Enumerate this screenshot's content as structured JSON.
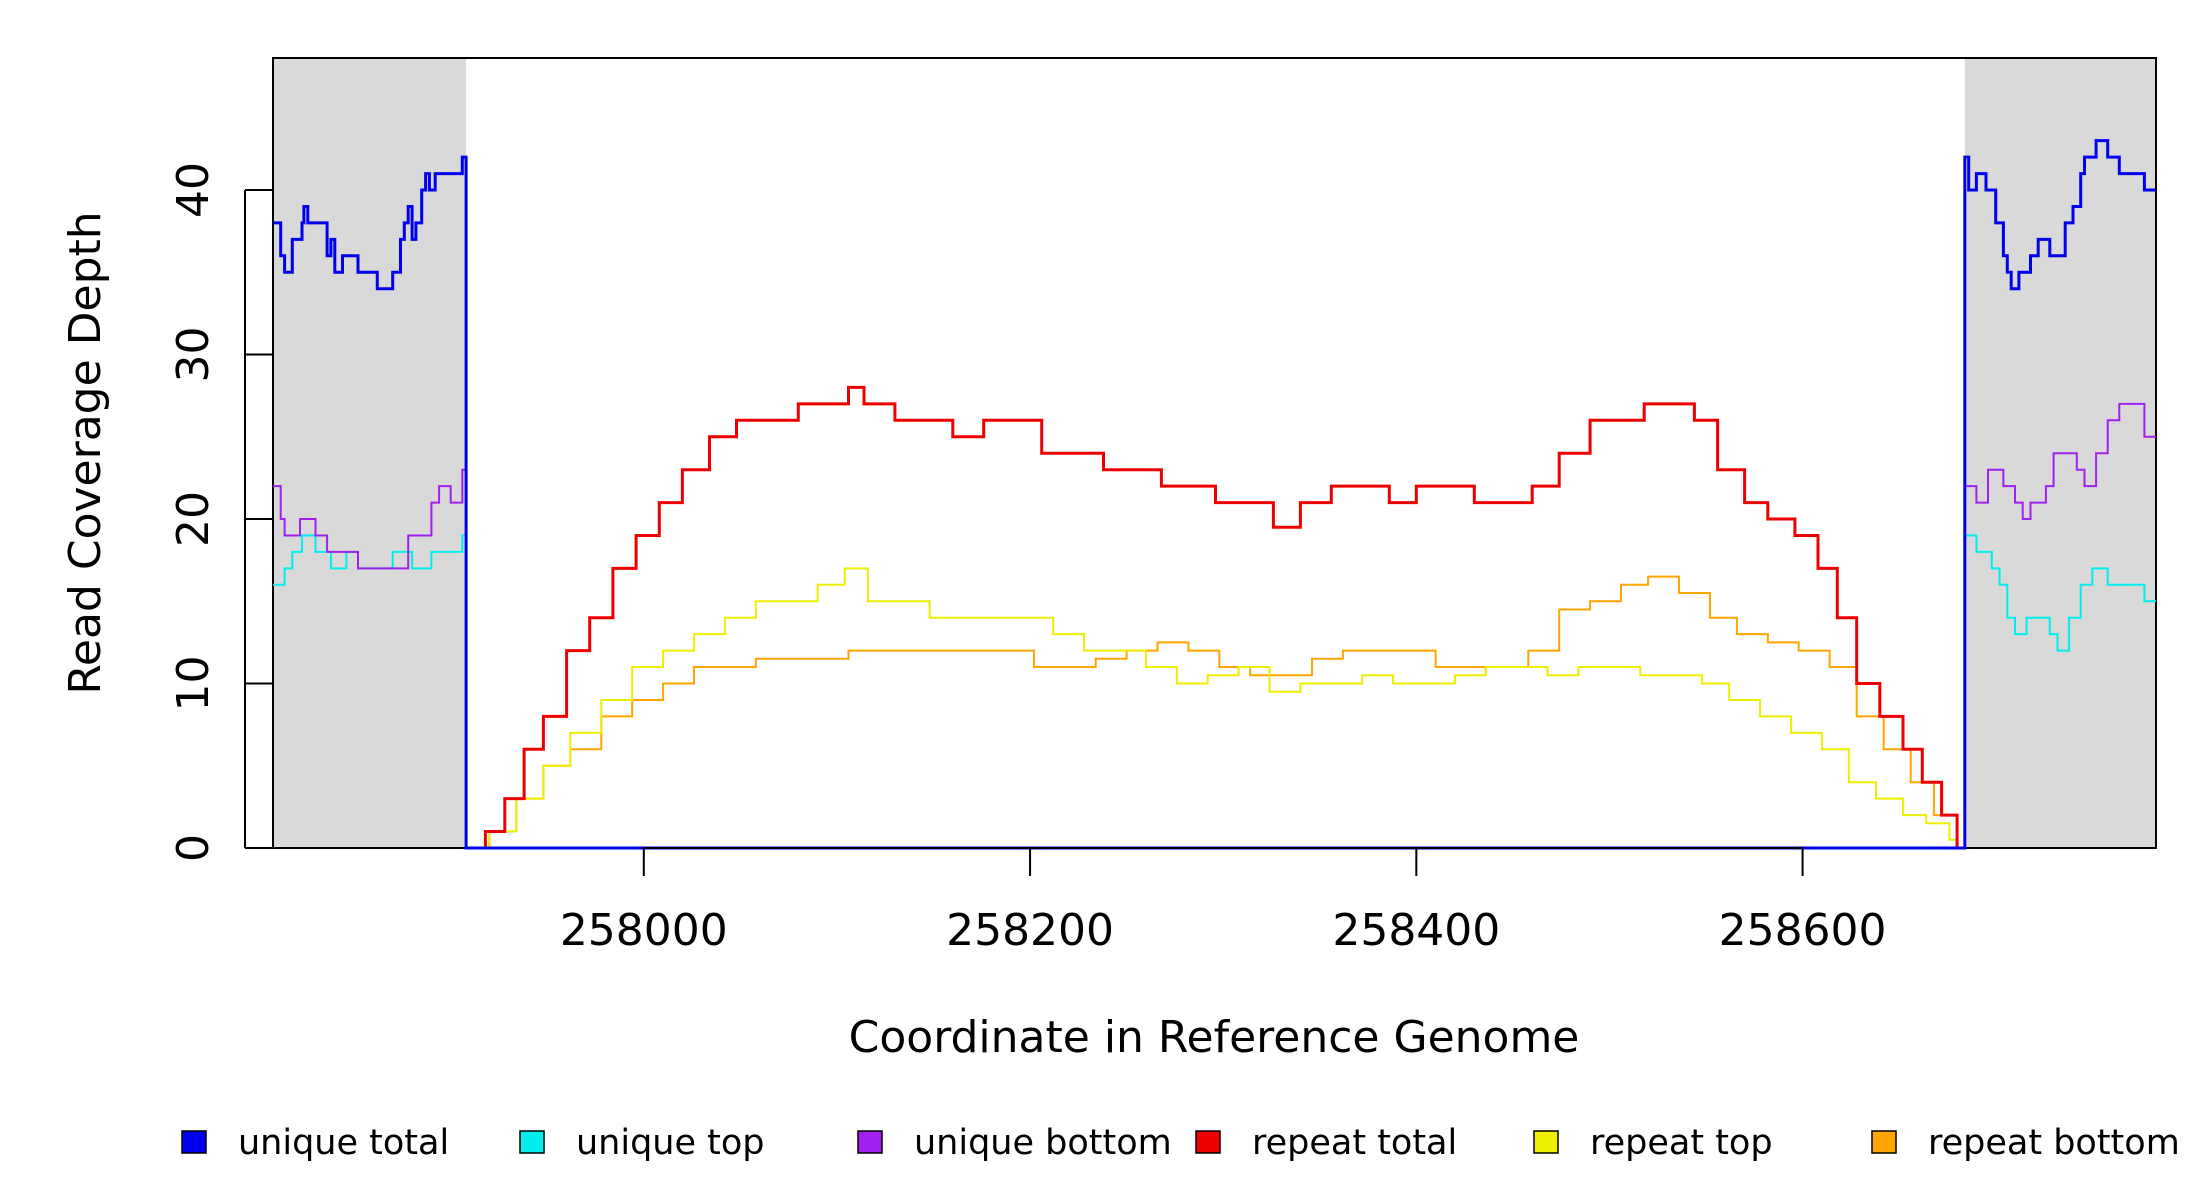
{
  "chart_data": {
    "type": "line",
    "title": "",
    "xlabel": "Coordinate in Reference Genome",
    "ylabel": "Read Coverage Depth",
    "xlim": [
      257808,
      258783
    ],
    "ylim": [
      0,
      48
    ],
    "x_ticks": [
      258000,
      258200,
      258400,
      258600
    ],
    "y_ticks": [
      0,
      10,
      20,
      30,
      40
    ],
    "grid": false,
    "legend_position": "bottom",
    "shaded_regions": [
      {
        "x0": 257808,
        "x1": 257908,
        "color": "#d9d9d9"
      },
      {
        "x0": 258684,
        "x1": 258783,
        "color": "#d9d9d9"
      }
    ],
    "series": [
      {
        "name": "unique total",
        "color": "#0000ee",
        "points": [
          [
            257808,
            38
          ],
          [
            257812,
            36
          ],
          [
            257814,
            35
          ],
          [
            257818,
            37
          ],
          [
            257823,
            38
          ],
          [
            257824,
            39
          ],
          [
            257826,
            38
          ],
          [
            257836,
            36
          ],
          [
            257838,
            37
          ],
          [
            257840,
            35
          ],
          [
            257844,
            36
          ],
          [
            257852,
            35
          ],
          [
            257862,
            34
          ],
          [
            257870,
            35
          ],
          [
            257874,
            37
          ],
          [
            257876,
            38
          ],
          [
            257878,
            39
          ],
          [
            257880,
            37
          ],
          [
            257882,
            38
          ],
          [
            257885,
            40
          ],
          [
            257887,
            41
          ],
          [
            257889,
            40
          ],
          [
            257892,
            41
          ],
          [
            257906,
            42
          ],
          [
            257908,
            42
          ],
          [
            257908,
            0
          ],
          [
            258684,
            0
          ],
          [
            258684,
            42
          ],
          [
            258686,
            40
          ],
          [
            258690,
            41
          ],
          [
            258695,
            40
          ],
          [
            258700,
            38
          ],
          [
            258704,
            36
          ],
          [
            258706,
            35
          ],
          [
            258708,
            34
          ],
          [
            258712,
            35
          ],
          [
            258718,
            36
          ],
          [
            258722,
            37
          ],
          [
            258728,
            36
          ],
          [
            258736,
            38
          ],
          [
            258740,
            39
          ],
          [
            258744,
            41
          ],
          [
            258746,
            42
          ],
          [
            258752,
            43
          ],
          [
            258758,
            42
          ],
          [
            258764,
            41
          ],
          [
            258772,
            41
          ],
          [
            258777,
            40
          ],
          [
            258783,
            40
          ]
        ]
      },
      {
        "name": "unique top",
        "color": "#00eeee",
        "points": [
          [
            257808,
            16
          ],
          [
            257814,
            17
          ],
          [
            257818,
            18
          ],
          [
            257823,
            19
          ],
          [
            257830,
            18
          ],
          [
            257838,
            17
          ],
          [
            257846,
            18
          ],
          [
            257852,
            17
          ],
          [
            257862,
            17
          ],
          [
            257870,
            18
          ],
          [
            257880,
            17
          ],
          [
            257890,
            18
          ],
          [
            257906,
            19
          ],
          [
            257908,
            0
          ],
          [
            258684,
            0
          ],
          [
            258684,
            19
          ],
          [
            258690,
            18
          ],
          [
            258698,
            17
          ],
          [
            258702,
            16
          ],
          [
            258706,
            14
          ],
          [
            258710,
            13
          ],
          [
            258716,
            14
          ],
          [
            258722,
            14
          ],
          [
            258728,
            13
          ],
          [
            258732,
            12
          ],
          [
            258738,
            14
          ],
          [
            258744,
            16
          ],
          [
            258750,
            17
          ],
          [
            258758,
            16
          ],
          [
            258768,
            16
          ],
          [
            258777,
            15
          ],
          [
            258783,
            15
          ]
        ]
      },
      {
        "name": "unique bottom",
        "color": "#a020f0",
        "points": [
          [
            257808,
            22
          ],
          [
            257812,
            20
          ],
          [
            257814,
            19
          ],
          [
            257822,
            20
          ],
          [
            257830,
            19
          ],
          [
            257836,
            18
          ],
          [
            257844,
            18
          ],
          [
            257852,
            17
          ],
          [
            257862,
            17
          ],
          [
            257872,
            17
          ],
          [
            257878,
            19
          ],
          [
            257882,
            19
          ],
          [
            257890,
            21
          ],
          [
            257894,
            22
          ],
          [
            257900,
            21
          ],
          [
            257906,
            23
          ],
          [
            257908,
            0
          ],
          [
            258684,
            0
          ],
          [
            258684,
            22
          ],
          [
            258690,
            21
          ],
          [
            258696,
            23
          ],
          [
            258704,
            22
          ],
          [
            258710,
            21
          ],
          [
            258714,
            20
          ],
          [
            258718,
            21
          ],
          [
            258726,
            22
          ],
          [
            258730,
            24
          ],
          [
            258736,
            24
          ],
          [
            258742,
            23
          ],
          [
            258746,
            22
          ],
          [
            258752,
            24
          ],
          [
            258758,
            26
          ],
          [
            258764,
            27
          ],
          [
            258772,
            27
          ],
          [
            258777,
            25
          ],
          [
            258783,
            25
          ]
        ]
      },
      {
        "name": "repeat total",
        "color": "#ee0000",
        "points": [
          [
            257908,
            0
          ],
          [
            257918,
            1
          ],
          [
            257928,
            3
          ],
          [
            257938,
            6
          ],
          [
            257948,
            8
          ],
          [
            257960,
            12
          ],
          [
            257972,
            14
          ],
          [
            257984,
            17
          ],
          [
            257996,
            19
          ],
          [
            258008,
            21
          ],
          [
            258020,
            23
          ],
          [
            258034,
            25
          ],
          [
            258048,
            26
          ],
          [
            258064,
            26
          ],
          [
            258080,
            27
          ],
          [
            258096,
            27
          ],
          [
            258106,
            28
          ],
          [
            258114,
            27
          ],
          [
            258130,
            26
          ],
          [
            258146,
            26
          ],
          [
            258160,
            25
          ],
          [
            258176,
            26
          ],
          [
            258192,
            26
          ],
          [
            258206,
            24
          ],
          [
            258222,
            24
          ],
          [
            258238,
            23
          ],
          [
            258254,
            23
          ],
          [
            258268,
            22
          ],
          [
            258282,
            22
          ],
          [
            258296,
            21
          ],
          [
            258310,
            21
          ],
          [
            258326,
            19.5
          ],
          [
            258340,
            21
          ],
          [
            258356,
            22
          ],
          [
            258370,
            22
          ],
          [
            258386,
            21
          ],
          [
            258400,
            22
          ],
          [
            258416,
            22
          ],
          [
            258430,
            21
          ],
          [
            258446,
            21
          ],
          [
            258460,
            22
          ],
          [
            258474,
            24
          ],
          [
            258490,
            26
          ],
          [
            258504,
            26
          ],
          [
            258518,
            27
          ],
          [
            258530,
            27
          ],
          [
            258544,
            26
          ],
          [
            258556,
            23
          ],
          [
            258570,
            21
          ],
          [
            258582,
            20
          ],
          [
            258596,
            19
          ],
          [
            258608,
            17
          ],
          [
            258618,
            14
          ],
          [
            258628,
            10
          ],
          [
            258640,
            8
          ],
          [
            258652,
            6
          ],
          [
            258662,
            4
          ],
          [
            258672,
            2
          ],
          [
            258680,
            0
          ]
        ]
      },
      {
        "name": "repeat top",
        "color": "#eeee00",
        "points": [
          [
            257908,
            0
          ],
          [
            257920,
            1
          ],
          [
            257934,
            3
          ],
          [
            257948,
            5
          ],
          [
            257962,
            7
          ],
          [
            257978,
            9
          ],
          [
            257994,
            11
          ],
          [
            258010,
            12
          ],
          [
            258026,
            13
          ],
          [
            258042,
            14
          ],
          [
            258058,
            15
          ],
          [
            258074,
            15
          ],
          [
            258090,
            16
          ],
          [
            258104,
            17
          ],
          [
            258116,
            15
          ],
          [
            258132,
            15
          ],
          [
            258148,
            14
          ],
          [
            258164,
            14
          ],
          [
            258180,
            14
          ],
          [
            258196,
            14
          ],
          [
            258212,
            13
          ],
          [
            258228,
            12
          ],
          [
            258244,
            12
          ],
          [
            258260,
            11
          ],
          [
            258276,
            10
          ],
          [
            258292,
            10.5
          ],
          [
            258308,
            11
          ],
          [
            258324,
            9.5
          ],
          [
            258340,
            10
          ],
          [
            258356,
            10
          ],
          [
            258372,
            10.5
          ],
          [
            258388,
            10
          ],
          [
            258404,
            10
          ],
          [
            258420,
            10.5
          ],
          [
            258436,
            11
          ],
          [
            258452,
            11
          ],
          [
            258468,
            10.5
          ],
          [
            258484,
            11
          ],
          [
            258500,
            11
          ],
          [
            258516,
            10.5
          ],
          [
            258532,
            10.5
          ],
          [
            258548,
            10
          ],
          [
            258562,
            9
          ],
          [
            258578,
            8
          ],
          [
            258594,
            7
          ],
          [
            258610,
            6
          ],
          [
            258624,
            4
          ],
          [
            258638,
            3
          ],
          [
            258652,
            2
          ],
          [
            258664,
            1.5
          ],
          [
            258676,
            0.5
          ],
          [
            258680,
            0
          ]
        ]
      },
      {
        "name": "repeat bottom",
        "color": "#ffa500",
        "points": [
          [
            257908,
            0
          ],
          [
            257920,
            1
          ],
          [
            257934,
            3
          ],
          [
            257948,
            5
          ],
          [
            257962,
            6
          ],
          [
            257978,
            8
          ],
          [
            257994,
            9
          ],
          [
            258010,
            10
          ],
          [
            258026,
            11
          ],
          [
            258042,
            11
          ],
          [
            258058,
            11.5
          ],
          [
            258074,
            11.5
          ],
          [
            258090,
            11.5
          ],
          [
            258106,
            12
          ],
          [
            258122,
            12
          ],
          [
            258138,
            12
          ],
          [
            258154,
            12
          ],
          [
            258170,
            12
          ],
          [
            258186,
            12
          ],
          [
            258202,
            11
          ],
          [
            258218,
            11
          ],
          [
            258234,
            11.5
          ],
          [
            258250,
            12
          ],
          [
            258266,
            12.5
          ],
          [
            258282,
            12
          ],
          [
            258298,
            11
          ],
          [
            258314,
            10.5
          ],
          [
            258330,
            10.5
          ],
          [
            258346,
            11.5
          ],
          [
            258362,
            12
          ],
          [
            258378,
            12
          ],
          [
            258394,
            12
          ],
          [
            258410,
            11
          ],
          [
            258426,
            11
          ],
          [
            258442,
            11
          ],
          [
            258458,
            12
          ],
          [
            258474,
            14.5
          ],
          [
            258490,
            15
          ],
          [
            258506,
            16
          ],
          [
            258520,
            16.5
          ],
          [
            258536,
            15.5
          ],
          [
            258552,
            14
          ],
          [
            258566,
            13
          ],
          [
            258582,
            12.5
          ],
          [
            258598,
            12
          ],
          [
            258614,
            11
          ],
          [
            258628,
            8
          ],
          [
            258642,
            6
          ],
          [
            258656,
            4
          ],
          [
            258668,
            2
          ],
          [
            258680,
            0
          ]
        ]
      }
    ]
  },
  "legend": {
    "items": [
      {
        "label": "unique total",
        "color": "#0000ee"
      },
      {
        "label": "unique top",
        "color": "#00eeee"
      },
      {
        "label": "unique bottom",
        "color": "#a020f0"
      },
      {
        "label": "repeat total",
        "color": "#ee0000"
      },
      {
        "label": "repeat top",
        "color": "#eeee00"
      },
      {
        "label": "repeat bottom",
        "color": "#ffa500"
      }
    ]
  }
}
